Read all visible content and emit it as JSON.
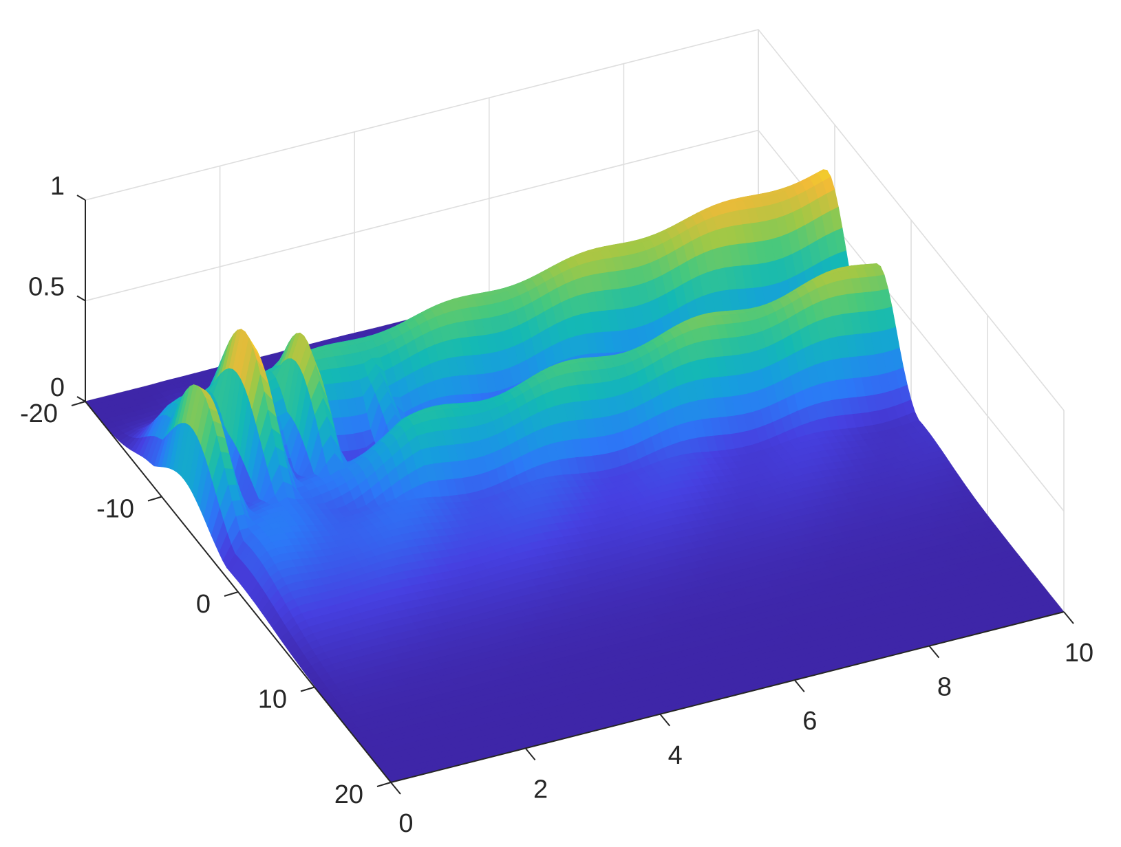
{
  "chart_data": {
    "type": "surface",
    "title": "",
    "xlabel": "",
    "ylabel": "",
    "zlabel": "",
    "x_axis": {
      "ticks": [
        0,
        2,
        4,
        6,
        8,
        10
      ],
      "tick_labels": [
        "0",
        "2",
        "4",
        "6",
        "8",
        "10"
      ],
      "range": [
        0,
        10
      ]
    },
    "y_axis": {
      "ticks": [
        -20,
        -10,
        0,
        10,
        20
      ],
      "tick_labels": [
        "-20",
        "-10",
        "0",
        "10",
        "20"
      ],
      "range": [
        -20,
        20
      ]
    },
    "z_axis": {
      "ticks": [
        0,
        0.5,
        1
      ],
      "tick_labels": [
        "0",
        "0.5",
        "1"
      ],
      "range": [
        0,
        1
      ]
    },
    "grid": true,
    "colormap": "parula",
    "colors": {
      "low": "#3e26a8",
      "high": "#f9fb0e"
    },
    "surface_features": {
      "peaks_along_left_edge": [
        {
          "t": 0.3,
          "x": -7,
          "height": 0.68
        },
        {
          "t": 1.15,
          "x": -9,
          "height": 0.8
        },
        {
          "t": 2.0,
          "x": -9,
          "height": 0.65
        },
        {
          "t": 3.1,
          "x": -10,
          "height": 0.45
        }
      ],
      "ridge_back": {
        "x": -11,
        "height_start": 0.36,
        "height_end": 0.72
      },
      "ridge_front": {
        "x": -4,
        "height_start": 0.3,
        "height_end": 0.6
      },
      "decay_front_edge": 0
    }
  }
}
